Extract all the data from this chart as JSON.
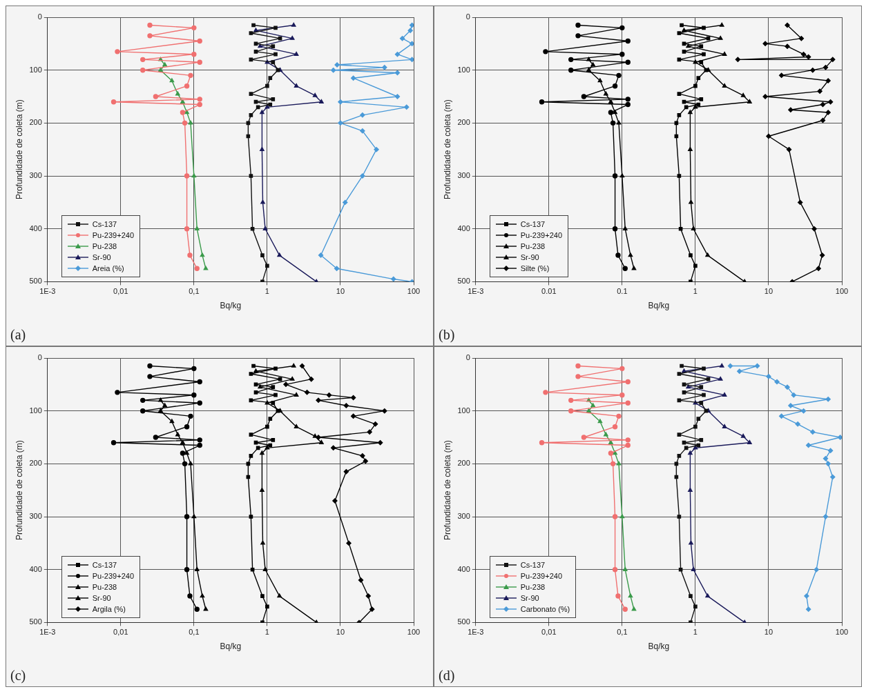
{
  "chart_data": [
    {
      "type": "line",
      "title": "(a)",
      "xlabel": "Bq/kg",
      "ylabel": "Profundidade de coleta (m)",
      "log": "x",
      "grid": true,
      "legend": "bottom left",
      "xlim": [
        0.001,
        100
      ],
      "xticks": [
        {
          "value": 0.001,
          "label": "1E-3"
        },
        {
          "value": 0.01,
          "label": "0,01"
        },
        {
          "value": 0.1,
          "label": "0,1"
        },
        1,
        10,
        100
      ],
      "ylim": [
        500,
        0
      ],
      "yticks": [
        0,
        100,
        200,
        300,
        400,
        500
      ],
      "series": [
        {
          "name": "Cs-137",
          "color": "#111111",
          "marker": "square",
          "x": [
            0.65,
            1.3,
            0.6,
            1.5,
            0.7,
            1.2,
            0.7,
            1.3,
            0.6,
            1.2,
            1.4,
            1.1,
            1.0,
            0.6,
            1.2,
            0.7,
            1.1,
            0.75,
            0.6,
            0.55,
            0.55,
            0.6,
            0.63,
            0.86,
            1.0,
            0.86
          ],
          "values": [
            15,
            20,
            30,
            40,
            50,
            55,
            65,
            70,
            80,
            85,
            100,
            115,
            130,
            145,
            155,
            160,
            165,
            170,
            185,
            200,
            225,
            300,
            400,
            450,
            470,
            500
          ]
        },
        {
          "name": "Pu-239+240",
          "color": "#f07070",
          "marker": "circle",
          "x": [
            0.025,
            0.1,
            0.025,
            0.12,
            0.009,
            0.1,
            0.02,
            0.12,
            0.02,
            0.09,
            0.08,
            0.03,
            0.12,
            0.008,
            0.12,
            0.07,
            0.075,
            0.08,
            0.08,
            0.088,
            0.11
          ],
          "values": [
            15,
            20,
            35,
            45,
            65,
            70,
            80,
            85,
            100,
            110,
            130,
            150,
            155,
            160,
            165,
            180,
            200,
            300,
            400,
            450,
            475
          ]
        },
        {
          "name": "Pu-238",
          "color": "#3a9a4a",
          "marker": "triangle",
          "x": [
            0.035,
            0.04,
            0.035,
            0.05,
            0.06,
            0.07,
            0.08,
            0.09,
            0.1,
            0.11,
            0.13,
            0.145
          ],
          "values": [
            80,
            90,
            100,
            120,
            145,
            160,
            180,
            200,
            300,
            400,
            450,
            475
          ]
        },
        {
          "name": "Sr-90",
          "color": "#1a1a5a",
          "marker": "triangle",
          "x": [
            2.3,
            0.7,
            2.2,
            0.8,
            2.5,
            1.0,
            1.5,
            2.5,
            4.5,
            5.5,
            1.0,
            0.85,
            0.85,
            0.87,
            0.94,
            1.47,
            4.7
          ],
          "values": [
            15,
            25,
            40,
            55,
            70,
            85,
            100,
            130,
            148,
            160,
            170,
            180,
            250,
            350,
            400,
            450,
            500
          ]
        },
        {
          "name": "Areia (%)",
          "color": "#4a9ad8",
          "marker": "diamond",
          "x": [
            95,
            90,
            70,
            95,
            60,
            95,
            9,
            40,
            8,
            60,
            15,
            60,
            10,
            80,
            20,
            10,
            20,
            31,
            20,
            11.6,
            5.4,
            8.9,
            53,
            95
          ],
          "values": [
            15,
            25,
            40,
            50,
            70,
            80,
            90,
            95,
            100,
            105,
            115,
            150,
            160,
            170,
            185,
            200,
            215,
            250,
            300,
            350,
            450,
            475,
            495,
            500
          ]
        }
      ]
    },
    {
      "type": "line",
      "title": "(b)",
      "xlabel": "Bq/kg",
      "ylabel": "Profundidade de coleta (m)",
      "log": "x",
      "grid": true,
      "legend": "bottom left",
      "xlim": [
        0.001,
        100
      ],
      "xticks": [
        {
          "value": 0.001,
          "label": "1E-3"
        },
        {
          "value": 0.01,
          "label": "0.01"
        },
        {
          "value": 0.1,
          "label": "0.1"
        },
        1,
        10,
        100
      ],
      "ylim": [
        500,
        0
      ],
      "yticks": [
        0,
        100,
        200,
        300,
        400,
        500
      ],
      "series": [
        {
          "name": "Cs-137",
          "color": "#000000",
          "marker": "square",
          "x": [
            0.65,
            1.3,
            0.6,
            1.5,
            0.7,
            1.2,
            0.7,
            1.3,
            0.6,
            1.2,
            1.4,
            1.1,
            1.0,
            0.6,
            1.2,
            0.7,
            1.1,
            0.75,
            0.6,
            0.55,
            0.55,
            0.6,
            0.63,
            0.86,
            1.0,
            0.86
          ],
          "values": [
            15,
            20,
            30,
            40,
            50,
            55,
            65,
            70,
            80,
            85,
            100,
            115,
            130,
            145,
            155,
            160,
            165,
            170,
            185,
            200,
            225,
            300,
            400,
            450,
            470,
            500
          ]
        },
        {
          "name": "Pu-239+240",
          "color": "#000000",
          "marker": "circle",
          "x": [
            0.025,
            0.1,
            0.025,
            0.12,
            0.009,
            0.1,
            0.02,
            0.12,
            0.02,
            0.09,
            0.08,
            0.03,
            0.12,
            0.008,
            0.12,
            0.07,
            0.075,
            0.08,
            0.08,
            0.088,
            0.11
          ],
          "values": [
            15,
            20,
            35,
            45,
            65,
            70,
            80,
            85,
            100,
            110,
            130,
            150,
            155,
            160,
            165,
            180,
            200,
            300,
            400,
            450,
            475
          ]
        },
        {
          "name": "Pu-238",
          "color": "#000000",
          "marker": "triangle",
          "x": [
            0.035,
            0.04,
            0.035,
            0.05,
            0.06,
            0.07,
            0.08,
            0.09,
            0.1,
            0.11,
            0.13,
            0.145
          ],
          "values": [
            80,
            90,
            100,
            120,
            145,
            160,
            180,
            200,
            300,
            400,
            450,
            475
          ]
        },
        {
          "name": "Sr-90",
          "color": "#000000",
          "marker": "triangle",
          "x": [
            2.3,
            0.7,
            2.2,
            0.8,
            2.5,
            1.0,
            1.5,
            2.5,
            4.5,
            5.5,
            1.0,
            0.85,
            0.85,
            0.87,
            0.94,
            1.47,
            4.7
          ],
          "values": [
            15,
            25,
            40,
            55,
            70,
            85,
            100,
            130,
            148,
            160,
            170,
            180,
            250,
            350,
            400,
            450,
            500
          ]
        },
        {
          "name": "Silte (%)",
          "color": "#000000",
          "marker": "diamond",
          "x": [
            18,
            28,
            9,
            18,
            30,
            35,
            3.8,
            75,
            60,
            40,
            15,
            65,
            50,
            9,
            70,
            55,
            20,
            65,
            55,
            10,
            19,
            27,
            42,
            54,
            48,
            21
          ],
          "values": [
            15,
            40,
            50,
            55,
            70,
            75,
            80,
            80,
            95,
            100,
            110,
            120,
            140,
            150,
            160,
            165,
            175,
            180,
            195,
            225,
            250,
            350,
            400,
            450,
            475,
            500
          ]
        }
      ]
    },
    {
      "type": "line",
      "title": "(c)",
      "xlabel": "Bq/kg",
      "ylabel": "Profundidade de coleta (m)",
      "log": "x",
      "grid": true,
      "legend": "bottom left",
      "xlim": [
        0.001,
        100
      ],
      "xticks": [
        {
          "value": 0.001,
          "label": "1E-3"
        },
        {
          "value": 0.01,
          "label": "0,01"
        },
        {
          "value": 0.1,
          "label": "0,1"
        },
        1,
        10,
        100
      ],
      "ylim": [
        500,
        0
      ],
      "yticks": [
        0,
        100,
        200,
        300,
        400,
        500
      ],
      "series": [
        {
          "name": "Cs-137",
          "color": "#000000",
          "marker": "square",
          "x": [
            0.65,
            1.3,
            0.6,
            1.5,
            0.7,
            1.2,
            0.7,
            1.3,
            0.6,
            1.2,
            1.4,
            1.1,
            1.0,
            0.6,
            1.2,
            0.7,
            1.1,
            0.75,
            0.6,
            0.55,
            0.55,
            0.6,
            0.63,
            0.86,
            1.0,
            0.86
          ],
          "values": [
            15,
            20,
            30,
            40,
            50,
            55,
            65,
            70,
            80,
            85,
            100,
            115,
            130,
            145,
            155,
            160,
            165,
            170,
            185,
            200,
            225,
            300,
            400,
            450,
            470,
            500
          ]
        },
        {
          "name": "Pu-239+240",
          "color": "#000000",
          "marker": "circle",
          "x": [
            0.025,
            0.1,
            0.025,
            0.12,
            0.009,
            0.1,
            0.02,
            0.12,
            0.02,
            0.09,
            0.08,
            0.03,
            0.12,
            0.008,
            0.12,
            0.07,
            0.075,
            0.08,
            0.08,
            0.088,
            0.11
          ],
          "values": [
            15,
            20,
            35,
            45,
            65,
            70,
            80,
            85,
            100,
            110,
            130,
            150,
            155,
            160,
            165,
            180,
            200,
            300,
            400,
            450,
            475
          ]
        },
        {
          "name": "Pu-238",
          "color": "#000000",
          "marker": "triangle",
          "x": [
            0.035,
            0.04,
            0.035,
            0.05,
            0.06,
            0.07,
            0.08,
            0.09,
            0.1,
            0.11,
            0.13,
            0.145
          ],
          "values": [
            80,
            90,
            100,
            120,
            145,
            160,
            180,
            200,
            300,
            400,
            450,
            475
          ]
        },
        {
          "name": "Sr-90",
          "color": "#000000",
          "marker": "triangle",
          "x": [
            2.3,
            0.7,
            2.2,
            0.8,
            2.5,
            1.0,
            1.5,
            2.5,
            4.5,
            5.5,
            1.0,
            0.85,
            0.85,
            0.87,
            0.94,
            1.47,
            4.7
          ],
          "values": [
            15,
            25,
            40,
            55,
            70,
            85,
            100,
            130,
            148,
            160,
            170,
            180,
            250,
            350,
            400,
            450,
            500
          ]
        },
        {
          "name": "Argila (%)",
          "color": "#000000",
          "marker": "diamond",
          "x": [
            3,
            4,
            1.8,
            3.5,
            7,
            15,
            5,
            12,
            40,
            15,
            30,
            25,
            5,
            35,
            8,
            20,
            22,
            12,
            8.4,
            13,
            19,
            24,
            27,
            18
          ],
          "values": [
            15,
            40,
            50,
            65,
            70,
            75,
            80,
            90,
            100,
            110,
            125,
            140,
            150,
            160,
            170,
            185,
            195,
            215,
            270,
            350,
            420,
            450,
            475,
            500
          ]
        }
      ]
    },
    {
      "type": "line",
      "title": "(d)",
      "xlabel": "Bq/kg",
      "ylabel": "Profundidade de coleta (m)",
      "log": "x",
      "grid": true,
      "legend": "bottom left",
      "xlim": [
        0.001,
        100
      ],
      "xticks": [
        {
          "value": 0.001,
          "label": "1E-3"
        },
        {
          "value": 0.01,
          "label": "0,01"
        },
        {
          "value": 0.1,
          "label": "0,1"
        },
        1,
        10,
        100
      ],
      "ylim": [
        500,
        0
      ],
      "yticks": [
        0,
        100,
        200,
        300,
        400,
        500
      ],
      "series": [
        {
          "name": "Cs-137",
          "color": "#111111",
          "marker": "square",
          "x": [
            0.65,
            1.3,
            0.6,
            1.5,
            0.7,
            1.2,
            0.7,
            1.3,
            0.6,
            1.2,
            1.4,
            1.1,
            1.0,
            0.6,
            1.2,
            0.7,
            1.1,
            0.75,
            0.6,
            0.55,
            0.55,
            0.6,
            0.63,
            0.86,
            1.0,
            0.86
          ],
          "values": [
            15,
            20,
            30,
            40,
            50,
            55,
            65,
            70,
            80,
            85,
            100,
            115,
            130,
            145,
            155,
            160,
            165,
            170,
            185,
            200,
            225,
            300,
            400,
            450,
            470,
            500
          ]
        },
        {
          "name": "Pu-239+240",
          "color": "#f07070",
          "marker": "circle",
          "x": [
            0.025,
            0.1,
            0.025,
            0.12,
            0.009,
            0.1,
            0.02,
            0.12,
            0.02,
            0.09,
            0.08,
            0.03,
            0.12,
            0.008,
            0.12,
            0.07,
            0.075,
            0.08,
            0.08,
            0.088,
            0.11
          ],
          "values": [
            15,
            20,
            35,
            45,
            65,
            70,
            80,
            85,
            100,
            110,
            130,
            150,
            155,
            160,
            165,
            180,
            200,
            300,
            400,
            450,
            475
          ]
        },
        {
          "name": "Pu-238",
          "color": "#3a9a4a",
          "marker": "triangle",
          "x": [
            0.035,
            0.04,
            0.035,
            0.05,
            0.06,
            0.07,
            0.08,
            0.09,
            0.1,
            0.11,
            0.13,
            0.145
          ],
          "values": [
            80,
            90,
            100,
            120,
            145,
            160,
            180,
            200,
            300,
            400,
            450,
            475
          ]
        },
        {
          "name": "Sr-90",
          "color": "#1a1a5a",
          "marker": "triangle",
          "x": [
            2.3,
            0.7,
            2.2,
            0.8,
            2.5,
            1.0,
            1.5,
            2.5,
            4.5,
            5.5,
            1.0,
            0.85,
            0.85,
            0.87,
            0.94,
            1.47,
            4.7
          ],
          "values": [
            15,
            25,
            40,
            55,
            70,
            85,
            100,
            130,
            148,
            160,
            170,
            180,
            250,
            350,
            400,
            450,
            500
          ]
        },
        {
          "name": "Carbonato (%)",
          "color": "#4a9ad8",
          "marker": "diamond",
          "x": [
            3,
            7,
            4,
            10,
            13,
            18,
            22,
            65,
            20,
            30,
            15,
            25,
            40,
            95,
            35,
            70,
            60,
            65,
            75,
            60,
            45,
            33,
            35
          ],
          "values": [
            15,
            15,
            25,
            35,
            45,
            55,
            70,
            78,
            90,
            100,
            110,
            125,
            140,
            150,
            165,
            175,
            190,
            200,
            225,
            300,
            400,
            450,
            475
          ]
        }
      ]
    }
  ]
}
